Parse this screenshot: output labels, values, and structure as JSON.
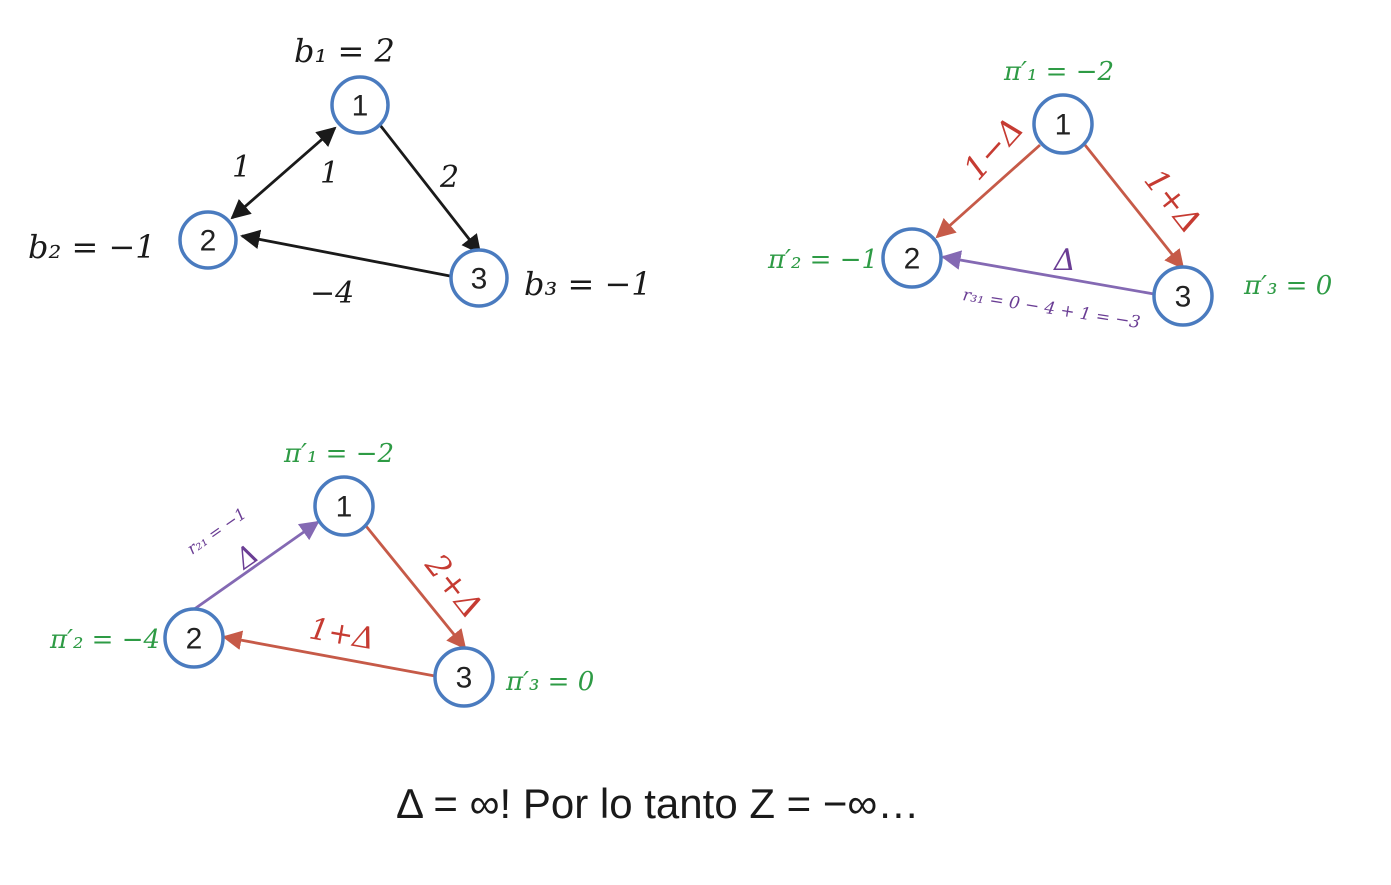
{
  "diagram1": {
    "nodes": [
      "1",
      "2",
      "3"
    ],
    "supply": {
      "b1": "b₁ =  2",
      "b2": "b₂ = −1",
      "b3": "b₃ = −1"
    },
    "edge_labels": {
      "e21": "1",
      "e12": "1",
      "e13": "2",
      "e32": "−4"
    }
  },
  "diagram2": {
    "nodes": [
      "1",
      "2",
      "3"
    ],
    "potentials": {
      "p1": "π′₁ = −2",
      "p2": "π′₂ = −1",
      "p3": "π′₃ = 0"
    },
    "edge_labels": {
      "e12": "1−Δ",
      "e13": "1+Δ",
      "e32": "Δ"
    },
    "reduced_cost": "r₃₁ = 0 − 4 + 1 = −3"
  },
  "diagram3": {
    "nodes": [
      "1",
      "2",
      "3"
    ],
    "potentials": {
      "p1": "π′₁ = −2",
      "p2": "π′₂ = −4",
      "p3": "π′₃ = 0"
    },
    "edge_labels": {
      "e21": "Δ",
      "e13": "2+Δ",
      "e32": "1+Δ"
    },
    "reduced_cost": "r₂₁ = −1"
  },
  "conclusion": "Δ = ∞! Por lo tanto Z = −∞…",
  "colors": {
    "node_stroke": "#4a7bbf",
    "green": "#2e9b45",
    "red": "#c63b32",
    "purple": "#6a3d94"
  }
}
